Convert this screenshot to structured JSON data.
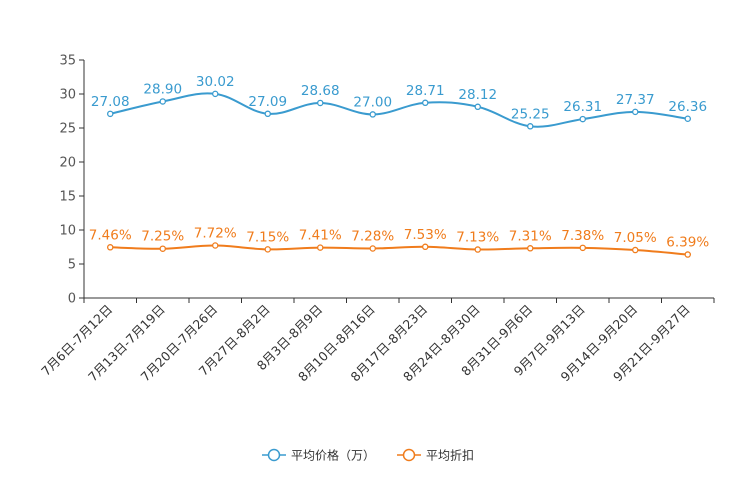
{
  "chart_data": {
    "type": "line",
    "title": "",
    "xlabel": "",
    "ylabel": "",
    "ylim": [
      0,
      35
    ],
    "yticks": [
      0,
      5,
      10,
      15,
      20,
      25,
      30,
      35
    ],
    "grid": false,
    "legend_position": "bottom-center",
    "categories": [
      "7月6日-7月12日",
      "7月13日-7月19日",
      "7月20日-7月26日",
      "7月27日-8月2日",
      "8月3日-8月9日",
      "8月10日-8月16日",
      "8月17日-8月23日",
      "8月24日-8月30日",
      "8月31日-9月6日",
      "9月7日-9月13日",
      "9月14日-9月20日",
      "9月21日-9月27日"
    ],
    "series": [
      {
        "name": "平均价格（万）",
        "color": "#3a9bcf",
        "values": [
          27.08,
          28.9,
          30.02,
          27.09,
          28.68,
          27.0,
          28.71,
          28.12,
          25.25,
          26.31,
          27.37,
          26.36
        ],
        "labels": [
          "27.08",
          "28.90",
          "30.02",
          "27.09",
          "28.68",
          "27.00",
          "28.71",
          "28.12",
          "25.25",
          "26.31",
          "27.37",
          "26.36"
        ]
      },
      {
        "name": "平均折扣",
        "color": "#f07c1c",
        "values": [
          7.46,
          7.25,
          7.72,
          7.15,
          7.41,
          7.28,
          7.53,
          7.13,
          7.31,
          7.38,
          7.05,
          6.39
        ],
        "labels": [
          "7.46%",
          "7.25%",
          "7.72%",
          "7.15%",
          "7.41%",
          "7.28%",
          "7.53%",
          "7.13%",
          "7.31%",
          "7.38%",
          "7.05%",
          "6.39%"
        ]
      }
    ]
  }
}
